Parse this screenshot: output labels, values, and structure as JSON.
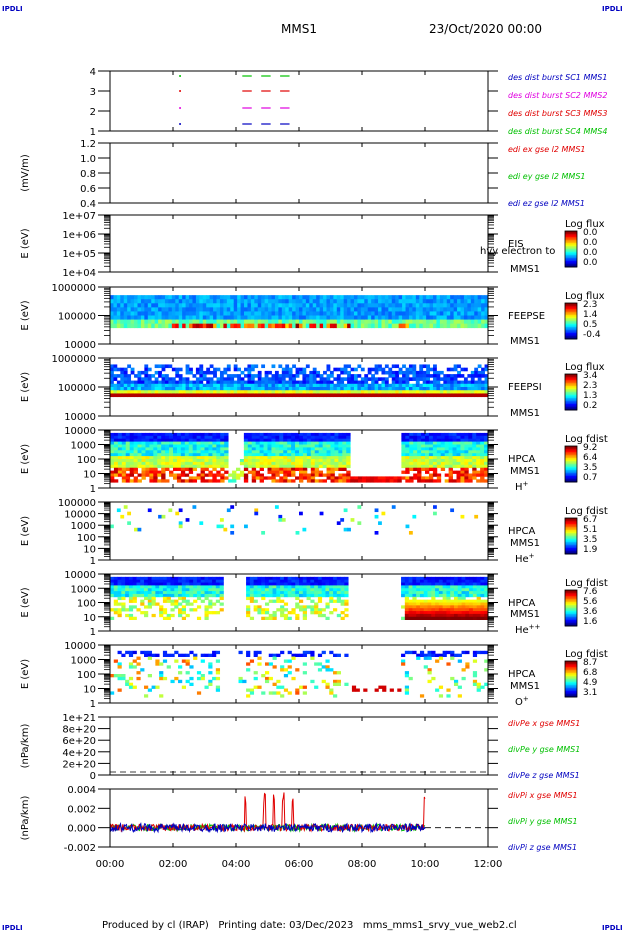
{
  "corner": {
    "tl": "IPDLI",
    "tr": "IPDLI",
    "bl": "IPDLI",
    "br": "IPDLI"
  },
  "header": {
    "mission": "MMS1",
    "datetime": "23/Oct/2020 00:00"
  },
  "footer": {
    "text": "Produced by cl (IRAP)   Printing date: 03/Dec/2023   mms_mms1_srvy_vue_web2.cl"
  },
  "colors": {
    "red": "#e00000",
    "green": "#00c000",
    "blue": "#0000c0",
    "magenta": "#e000e0",
    "dash": "#000000"
  },
  "chart_data": [
    {
      "type": "scatter",
      "id": "burst",
      "yticks": [
        "4",
        "3",
        "2",
        "1"
      ],
      "legend": [
        {
          "text": "des dist burst SC1 MMS1",
          "color": "#0000c0"
        },
        {
          "text": "des dist burst SC2 MMS2",
          "color": "#e000e0"
        },
        {
          "text": "des dist burst SC3 MMS3",
          "color": "#e00000"
        },
        {
          "text": "des dist burst SC4 MMS4",
          "color": "#00c000"
        }
      ],
      "segments_hours": [
        [
          4.2,
          4.5
        ],
        [
          4.8,
          5.1
        ],
        [
          5.4,
          5.7
        ]
      ],
      "dots_hours": [
        2.2
      ]
    },
    {
      "type": "line",
      "id": "edi",
      "ylabel": "(mV/m)",
      "yticks": [
        "1.2",
        "1.0",
        "0.8",
        "0.6",
        "0.4"
      ],
      "legend": [
        {
          "text": "edi ex gse l2 MMS1",
          "color": "#e00000"
        },
        {
          "text": "edi ey gse l2 MMS1",
          "color": "#00c000"
        },
        {
          "text": "edi ez gse l2 MMS1",
          "color": "#0000c0"
        }
      ]
    },
    {
      "type": "heatmap",
      "id": "eis",
      "ylabel": "E (eV)",
      "yticks": [
        "1e+07",
        "1e+06",
        "1e+05",
        "1e+04"
      ],
      "label1": "EIS",
      "label2": "MMS1",
      "overlay": "hvy electron to",
      "cbar_title": "Log flux",
      "cbar_ticks": [
        "0.0",
        "0.0",
        "0.0",
        "0.0"
      ]
    },
    {
      "type": "heatmap",
      "id": "feepse",
      "ylabel": "E (eV)",
      "yticks": [
        "1000000",
        "100000",
        "10000"
      ],
      "label1": "FEEPSE",
      "label2": "MMS1",
      "cbar_title": "Log flux",
      "cbar_ticks": [
        "2.3",
        "1.4",
        "0.5",
        "-0.4"
      ]
    },
    {
      "type": "heatmap",
      "id": "feepsi",
      "ylabel": "E (eV)",
      "yticks": [
        "1000000",
        "100000",
        "10000"
      ],
      "label1": "FEEPSI",
      "label2": "MMS1",
      "cbar_title": "Log flux",
      "cbar_ticks": [
        "3.4",
        "2.3",
        "1.3",
        "0.2"
      ]
    },
    {
      "type": "heatmap",
      "id": "hpca_h",
      "ylabel": "E (eV)",
      "yticks": [
        "10000",
        "1000",
        "100",
        "10",
        "1"
      ],
      "label1": "HPCA",
      "label2": "MMS1",
      "species": "H",
      "charge": "+",
      "cbar_title": "Log fdist",
      "cbar_ticks": [
        "9.2",
        "6.4",
        "3.5",
        "0.7"
      ]
    },
    {
      "type": "heatmap",
      "id": "hpca_he",
      "ylabel": "E (eV)",
      "yticks": [
        "100000",
        "10000",
        "1000",
        "100",
        "10",
        "1"
      ],
      "label1": "HPCA",
      "label2": "MMS1",
      "species": "He",
      "charge": "+",
      "cbar_title": "Log fdist",
      "cbar_ticks": [
        "6.7",
        "5.1",
        "3.5",
        "1.9"
      ]
    },
    {
      "type": "heatmap",
      "id": "hpca_hepp",
      "ylabel": "E (eV)",
      "yticks": [
        "10000",
        "1000",
        "100",
        "10",
        "1"
      ],
      "label1": "HPCA",
      "label2": "MMS1",
      "species": "He",
      "charge": "++",
      "cbar_title": "Log fdist",
      "cbar_ticks": [
        "7.6",
        "5.6",
        "3.6",
        "1.6"
      ]
    },
    {
      "type": "heatmap",
      "id": "hpca_o",
      "ylabel": "E (eV)",
      "yticks": [
        "10000",
        "1000",
        "100",
        "10",
        "1"
      ],
      "label1": "HPCA",
      "label2": "MMS1",
      "species": "O",
      "charge": "+",
      "cbar_title": "Log fdist",
      "cbar_ticks": [
        "8.7",
        "6.8",
        "4.9",
        "3.1"
      ]
    },
    {
      "type": "line",
      "id": "divpe",
      "ylabel": "(nPa/km)",
      "yticks": [
        "1e+21",
        "8e+20",
        "6e+20",
        "4e+20",
        "2e+20",
        "0"
      ],
      "legend": [
        {
          "text": "divPe x gse MMS1",
          "color": "#e00000"
        },
        {
          "text": "divPe y gse MMS1",
          "color": "#00c000"
        },
        {
          "text": "divPe z gse MMS1",
          "color": "#0000c0"
        }
      ]
    },
    {
      "type": "line",
      "id": "divpi",
      "ylabel": "(nPa/km)",
      "yticks": [
        "0.004",
        "0.002",
        "0.000",
        "-0.002"
      ],
      "ylim": [
        -0.002,
        0.004
      ],
      "legend": [
        {
          "text": "divPi x gse MMS1",
          "color": "#e00000"
        },
        {
          "text": "divPi y gse MMS1",
          "color": "#00c000"
        },
        {
          "text": "divPi z gse MMS1",
          "color": "#0000c0"
        }
      ],
      "spikes_hours": [
        4.3,
        4.9,
        5.2,
        5.5,
        5.8,
        10.0
      ],
      "data_end_hour": 10.0
    }
  ],
  "xaxis": {
    "ticks": [
      "00:00",
      "02:00",
      "04:00",
      "06:00",
      "08:00",
      "10:00",
      "12:00"
    ],
    "range_hours": [
      0,
      12
    ]
  }
}
